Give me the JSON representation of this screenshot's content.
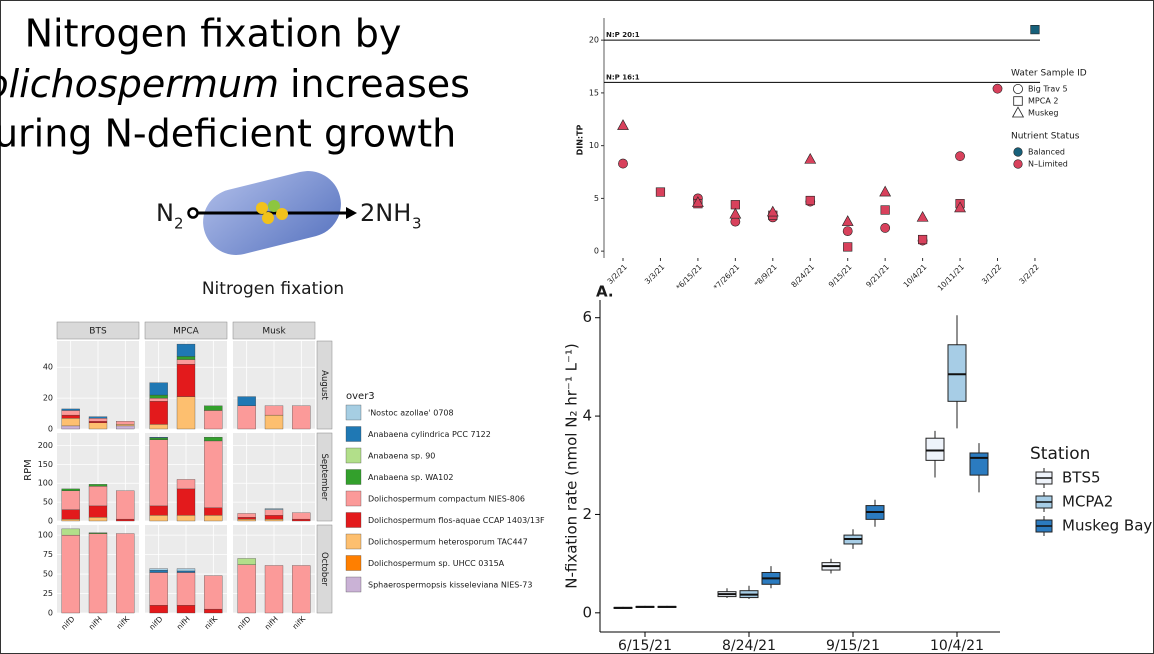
{
  "slide": {
    "title": [
      "Nitrogen fixation by",
      "Dolichospermum",
      "increases",
      "during N-deficient growth"
    ],
    "diagram": {
      "reactant": "N",
      "reactant_sub": "2",
      "product": "2NH",
      "product_sub": "3",
      "caption": "Nitrogen fixation"
    }
  },
  "chart_data": [
    {
      "type": "stacked_bar_facets",
      "ylabel": "RPM",
      "legend_title": "over3",
      "columns": [
        "BTS",
        "MPCA",
        "Musk"
      ],
      "categories": [
        "nifD",
        "nifH",
        "nifK"
      ],
      "series": [
        {
          "name": "'Nostoc azollae' 0708",
          "color": "#a6cee3"
        },
        {
          "name": "Anabaena cylindrica PCC 7122",
          "color": "#1f78b4"
        },
        {
          "name": "Anabaena sp. 90",
          "color": "#b2df8a"
        },
        {
          "name": "Anabaena sp. WA102",
          "color": "#33a02c"
        },
        {
          "name": "Dolichospermum compactum NIES-806",
          "color": "#fb9a99"
        },
        {
          "name": "Dolichospermum flos-aquae CCAP 1403/13F",
          "color": "#e31a1c"
        },
        {
          "name": "Dolichospermum heterosporum TAC447",
          "color": "#fdbf6f"
        },
        {
          "name": "Dolichospermum sp. UHCC 0315A",
          "color": "#ff7f00"
        },
        {
          "name": "Sphaerospermopsis kisseleviana NIES-73",
          "color": "#cab2d6"
        }
      ],
      "rows": [
        {
          "name": "August",
          "ylim": [
            0,
            57
          ],
          "yticks": [
            0,
            20,
            40
          ],
          "values": [
            [
              0,
              0,
              0,
              0,
              0,
              0,
              0,
              0,
              0
            ],
            [
              1,
              1,
              0,
              8,
              8,
              0,
              6,
              0,
              0
            ],
            [
              0,
              0,
              0,
              0,
              0,
              0,
              0,
              0,
              0
            ],
            [
              0,
              0,
              0,
              2,
              2,
              3,
              0,
              0,
              0
            ],
            [
              3,
              2,
              2,
              2,
              3,
              12,
              15,
              6,
              15
            ],
            [
              2,
              1,
              0,
              15,
              21,
              0,
              0,
              0,
              0
            ],
            [
              5,
              4,
              1,
              3,
              21,
              0,
              0,
              9,
              0
            ],
            [
              0,
              0,
              0,
              0,
              0,
              0,
              0,
              0,
              0
            ],
            [
              2,
              0,
              2,
              0,
              0,
              0,
              0,
              0,
              0
            ]
          ]
        },
        {
          "name": "September",
          "ylim": [
            0,
            233
          ],
          "yticks": [
            0,
            50,
            100,
            150,
            200
          ],
          "values": [
            [
              0,
              0,
              0,
              0,
              0,
              0,
              0,
              3,
              0
            ],
            [
              0,
              0,
              0,
              2,
              0,
              0,
              0,
              0,
              0
            ],
            [
              0,
              0,
              0,
              0,
              0,
              0,
              0,
              0,
              0
            ],
            [
              5,
              5,
              0,
              5,
              0,
              10,
              0,
              0,
              0
            ],
            [
              50,
              52,
              75,
              175,
              25,
              177,
              10,
              15,
              17
            ],
            [
              25,
              30,
              5,
              25,
              70,
              20,
              5,
              10,
              5
            ],
            [
              5,
              10,
              0,
              15,
              15,
              15,
              5,
              5,
              0
            ],
            [
              0,
              0,
              0,
              0,
              0,
              0,
              0,
              0,
              0
            ],
            [
              0,
              0,
              0,
              0,
              0,
              0,
              0,
              0,
              0
            ]
          ]
        },
        {
          "name": "October",
          "ylim": [
            0,
            113
          ],
          "yticks": [
            0,
            25,
            50,
            75,
            100
          ],
          "values": [
            [
              0,
              0,
              0,
              2,
              3,
              0,
              0,
              0,
              0
            ],
            [
              0,
              0,
              0,
              3,
              2,
              0,
              0,
              0,
              0
            ],
            [
              8,
              0,
              0,
              0,
              0,
              0,
              8,
              0,
              0
            ],
            [
              0,
              1,
              0,
              0,
              0,
              0,
              0,
              0,
              0
            ],
            [
              100,
              102,
              102,
              42,
              42,
              43,
              62,
              61,
              61
            ],
            [
              0,
              0,
              0,
              10,
              10,
              5,
              0,
              0,
              0
            ],
            [
              0,
              0,
              0,
              0,
              0,
              0,
              0,
              0,
              0
            ],
            [
              0,
              0,
              0,
              0,
              0,
              0,
              0,
              0,
              0
            ],
            [
              0,
              0,
              0,
              0,
              0,
              0,
              0,
              0,
              0
            ]
          ]
        }
      ]
    },
    {
      "type": "scatter",
      "ylabel": "DIN:TP",
      "categories": [
        "3/2/21",
        "3/3/21",
        "*6/15/21",
        "*7/26/21",
        "*8/9/21",
        "8/24/21",
        "9/15/21",
        "9/21/21",
        "10/4/21",
        "10/11/21",
        "3/1/22",
        "3/2/22"
      ],
      "ylim": [
        -0.65,
        22.1
      ],
      "yticks": [
        0,
        5,
        10,
        15,
        20
      ],
      "hlines": [
        {
          "value": 20,
          "label": "N:P 20:1"
        },
        {
          "value": 16,
          "label": "N:P 16:1"
        }
      ],
      "shape_title": "Water Sample ID",
      "color_title": "Nutrient Status",
      "statuses": [
        {
          "name": "Balanced",
          "color": "#17607a"
        },
        {
          "name": "N–Limited",
          "color": "#d8415c"
        }
      ],
      "series": [
        {
          "name": "Big Trav 5",
          "shape": "circle",
          "values": [
            8.3,
            null,
            5.0,
            2.8,
            3.2,
            4.7,
            1.9,
            2.2,
            1.0,
            9.0,
            15.4,
            null
          ],
          "status": [
            "N–Limited",
            null,
            "N–Limited",
            "N–Limited",
            "N–Limited",
            "N–Limited",
            "N–Limited",
            "N–Limited",
            "N–Limited",
            "N–Limited",
            "N–Limited",
            null
          ]
        },
        {
          "name": "MPCA 2",
          "shape": "square",
          "values": [
            null,
            5.6,
            4.5,
            4.4,
            3.4,
            4.8,
            0.4,
            3.9,
            1.1,
            4.5,
            null,
            21
          ],
          "status": [
            null,
            "N–Limited",
            "N–Limited",
            "N–Limited",
            "N–Limited",
            "N–Limited",
            "N–Limited",
            "N–Limited",
            "N–Limited",
            "N–Limited",
            null,
            "Balanced"
          ]
        },
        {
          "name": "Muskeg",
          "shape": "triangle",
          "values": [
            11.9,
            null,
            4.6,
            3.5,
            3.7,
            8.7,
            2.8,
            5.6,
            3.2,
            4.1,
            null,
            null
          ],
          "status": [
            "N–Limited",
            null,
            "N–Limited",
            "N–Limited",
            "N–Limited",
            "N–Limited",
            "N–Limited",
            "N–Limited",
            "N–Limited",
            "N–Limited",
            null,
            null
          ]
        }
      ]
    },
    {
      "type": "box",
      "label": "A.",
      "ylabel": "N-fixation rate (nmol N₂ hr⁻¹ L⁻¹)",
      "categories": [
        "6/15/21",
        "8/24/21",
        "9/15/21",
        "10/4/21"
      ],
      "ylim": [
        -0.39,
        6.36
      ],
      "yticks": [
        0,
        2,
        4,
        6
      ],
      "legend_title": "Station",
      "series": [
        {
          "name": "BTS5",
          "color": "#eef3fa",
          "min": [
            0.08,
            0.3,
            0.8,
            2.75
          ],
          "q1": [
            0.09,
            0.33,
            0.87,
            3.1
          ],
          "median": [
            0.1,
            0.38,
            0.95,
            3.3
          ],
          "q3": [
            0.11,
            0.43,
            1.02,
            3.55
          ],
          "max": [
            0.12,
            0.5,
            1.1,
            3.7
          ]
        },
        {
          "name": "MCPA2",
          "color": "#a7cde6",
          "min": [
            0.1,
            0.28,
            1.3,
            3.75
          ],
          "q1": [
            0.11,
            0.31,
            1.4,
            4.3
          ],
          "median": [
            0.12,
            0.37,
            1.5,
            4.85
          ],
          "q3": [
            0.13,
            0.45,
            1.58,
            5.45
          ],
          "max": [
            0.14,
            0.55,
            1.7,
            6.05
          ]
        },
        {
          "name": "Muskeg Bay",
          "color": "#2b7bc0",
          "min": [
            0.1,
            0.5,
            1.75,
            2.45
          ],
          "q1": [
            0.11,
            0.58,
            1.9,
            2.8
          ],
          "median": [
            0.12,
            0.7,
            2.05,
            3.15
          ],
          "q3": [
            0.13,
            0.82,
            2.18,
            3.25
          ],
          "max": [
            0.14,
            0.95,
            2.3,
            3.45
          ]
        }
      ]
    }
  ]
}
